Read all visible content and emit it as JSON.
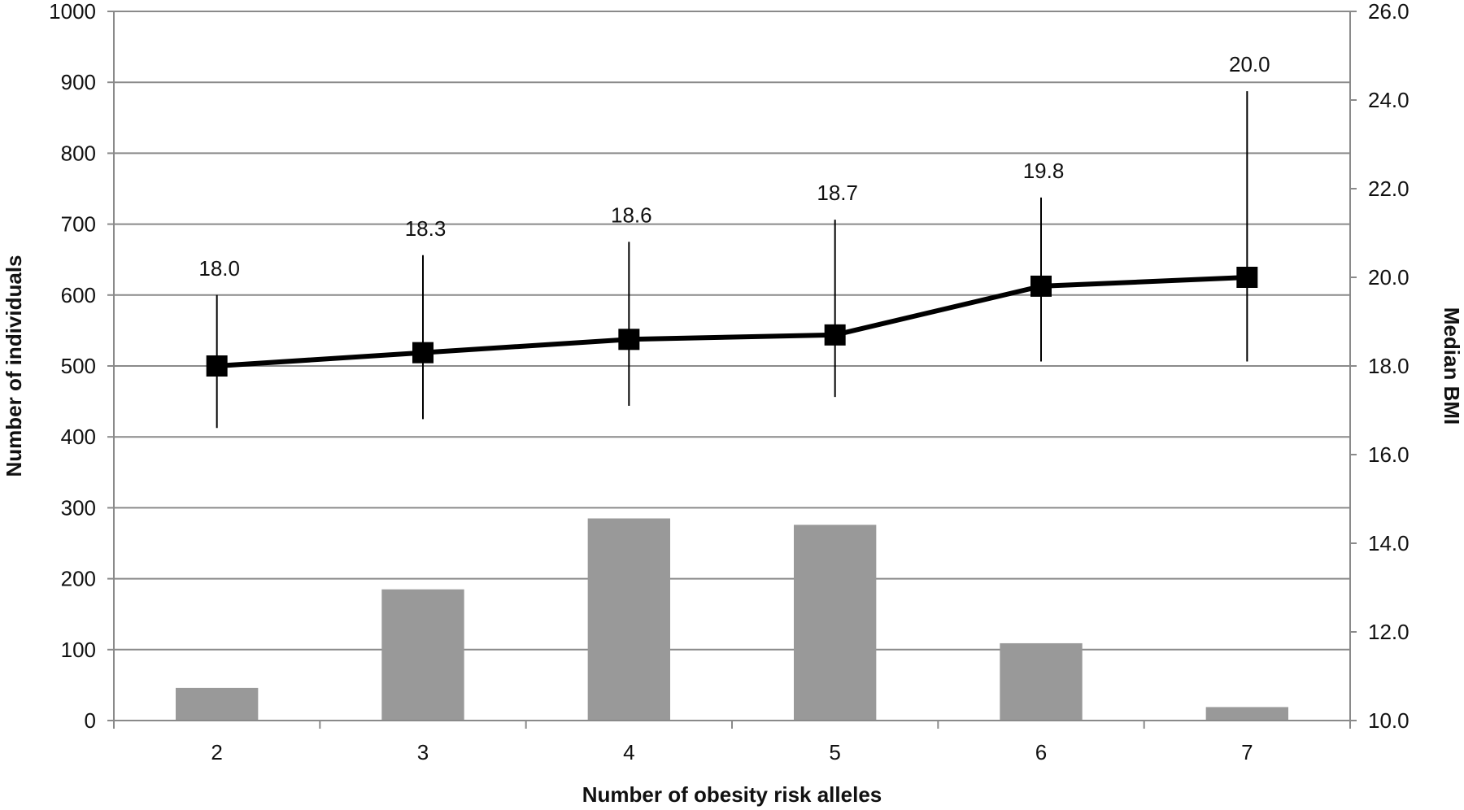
{
  "chart_data": {
    "type": "bar",
    "title": "",
    "xlabel": "Number of obesity risk alleles",
    "ylabel": "Number of individuals",
    "y2label": "Median BMI",
    "categories": [
      "2",
      "3",
      "4",
      "5",
      "6",
      "7"
    ],
    "ylim": [
      0,
      1000
    ],
    "yticks": [
      "0",
      "100",
      "200",
      "300",
      "400",
      "500",
      "600",
      "700",
      "800",
      "900",
      "1000"
    ],
    "y2lim": [
      10.0,
      26.0
    ],
    "y2ticks": [
      "10.0",
      "12.0",
      "14.0",
      "16.0",
      "18.0",
      "20.0",
      "22.0",
      "24.0",
      "26.0"
    ],
    "grid": true,
    "series": [
      {
        "type": "bar",
        "axis": "left",
        "values": [
          46,
          185,
          285,
          276,
          109,
          19
        ],
        "color": "#999999"
      },
      {
        "type": "line",
        "axis": "right",
        "values": [
          18.0,
          18.3,
          18.6,
          18.7,
          19.8,
          20.0
        ],
        "labels": [
          "18.0",
          "18.3",
          "18.6",
          "18.7",
          "19.8",
          "20.0"
        ],
        "error_low": [
          16.6,
          16.8,
          17.1,
          17.3,
          18.1,
          18.1
        ],
        "error_high": [
          19.6,
          20.5,
          20.8,
          21.3,
          21.8,
          24.2
        ],
        "marker": "square",
        "color": "#000000"
      }
    ]
  }
}
